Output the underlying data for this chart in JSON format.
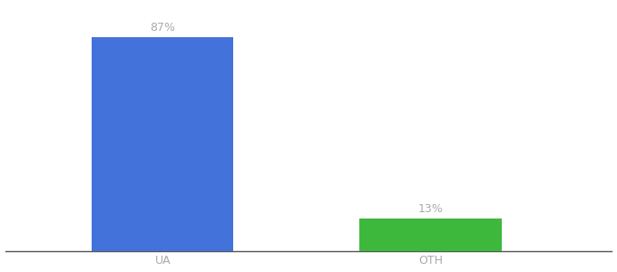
{
  "categories": [
    "UA",
    "OTH"
  ],
  "values": [
    87,
    13
  ],
  "bar_colors": [
    "#4472db",
    "#3db83d"
  ],
  "label_texts": [
    "87%",
    "13%"
  ],
  "background_color": "#ffffff",
  "ylim": [
    0,
    100
  ],
  "bar_width": 0.18,
  "label_fontsize": 9,
  "tick_fontsize": 9,
  "tick_color": "#aaaaaa",
  "label_color": "#aaaaaa",
  "axis_line_color": "#555555",
  "x_positions": [
    0.28,
    0.62
  ]
}
